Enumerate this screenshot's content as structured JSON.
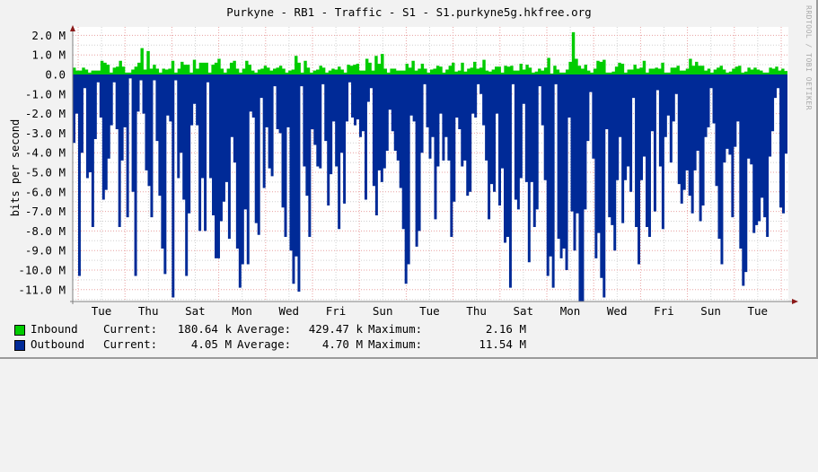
{
  "chart_data": {
    "type": "area",
    "title": "Purkyne - RB1 - Traffic - S1 - S1.purkyne5g.hkfree.org",
    "ylabel": "bits per second",
    "xlabel": "",
    "ylim": [
      -11.6,
      2.2
    ],
    "yticks": [
      "2.0 M",
      "1.0 M",
      "0.0",
      "-1.0 M",
      "-2.0 M",
      "-3.0 M",
      "-4.0 M",
      "-5.0 M",
      "-6.0 M",
      "-7.0 M",
      "-8.0 M",
      "-9.0 M",
      "-10.0 M",
      "-11.0 M"
    ],
    "ytick_values": [
      2,
      1,
      0,
      -1,
      -2,
      -3,
      -4,
      -5,
      -6,
      -7,
      -8,
      -9,
      -10,
      -11
    ],
    "xticks": [
      "Tue",
      "Thu",
      "Sat",
      "Mon",
      "Wed",
      "Fri",
      "Sun",
      "Tue",
      "Thu",
      "Sat",
      "Mon",
      "Wed",
      "Fri",
      "Sun",
      "Tue"
    ],
    "grid": true,
    "legend_position": "bottom",
    "series": [
      {
        "name": "Inbound",
        "color": "#00cc00",
        "unit": "M bits/s",
        "values": [
          0.35,
          0.2,
          0.2,
          0.35,
          0.25,
          0.1,
          0.2,
          0.2,
          0.2,
          0.7,
          0.6,
          0.5,
          0.1,
          0.35,
          0.4,
          0.7,
          0.4,
          0.1,
          0.1,
          0.25,
          0.4,
          0.6,
          1.35,
          0.25,
          1.2,
          0.3,
          0.5,
          0.3,
          0.1,
          0.3,
          0.25,
          0.3,
          0.7,
          0.1,
          0.3,
          0.65,
          0.5,
          0.5,
          0.1,
          0.75,
          0.3,
          0.6,
          0.6,
          0.6,
          0.1,
          0.5,
          0.6,
          0.8,
          0.3,
          0.1,
          0.3,
          0.6,
          0.7,
          0.3,
          0.1,
          0.3,
          0.7,
          0.5,
          0.2,
          0.1,
          0.25,
          0.3,
          0.45,
          0.35,
          0.2,
          0.3,
          0.35,
          0.45,
          0.3,
          0.1,
          0.2,
          0.25,
          0.95,
          0.6,
          0.1,
          0.7,
          0.35,
          0.1,
          0.2,
          0.25,
          0.45,
          0.35,
          0.1,
          0.2,
          0.3,
          0.25,
          0.4,
          0.25,
          0.1,
          0.5,
          0.45,
          0.5,
          0.55,
          0.2,
          0.2,
          0.8,
          0.6,
          0.2,
          0.95,
          0.55,
          1.05,
          0.3,
          0.1,
          0.3,
          0.3,
          0.2,
          0.2,
          0.2,
          0.55,
          0.35,
          0.7,
          0.2,
          0.3,
          0.55,
          0.3,
          0.1,
          0.25,
          0.3,
          0.45,
          0.4,
          0.1,
          0.25,
          0.45,
          0.6,
          0.15,
          0.2,
          0.6,
          0.15,
          0.3,
          0.35,
          0.65,
          0.3,
          0.35,
          0.75,
          0.2,
          0.15,
          0.25,
          0.4,
          0.4,
          0.1,
          0.45,
          0.4,
          0.45,
          0.2,
          0.2,
          0.55,
          0.25,
          0.5,
          0.35,
          0.1,
          0.15,
          0.3,
          0.2,
          0.35,
          0.85,
          0.05,
          0.45,
          0.25,
          0.1,
          0.1,
          0.25,
          0.65,
          2.16,
          0.8,
          0.45,
          0.3,
          0.5,
          0.2,
          0.1,
          0.3,
          0.7,
          0.65,
          0.75,
          0.1,
          0.1,
          0.15,
          0.4,
          0.6,
          0.55,
          0.1,
          0.25,
          0.25,
          0.5,
          0.3,
          0.35,
          0.7,
          0.1,
          0.3,
          0.3,
          0.35,
          0.3,
          0.6,
          0.1,
          0.1,
          0.35,
          0.35,
          0.45,
          0.2,
          0.2,
          0.3,
          0.8,
          0.45,
          0.65,
          0.45,
          0.45,
          0.2,
          0.3,
          0.1,
          0.25,
          0.35,
          0.45,
          0.25,
          0.1,
          0.15,
          0.3,
          0.4,
          0.45,
          0.1,
          0.15,
          0.35,
          0.25,
          0.35,
          0.25,
          0.2,
          0.1,
          0.1,
          0.35,
          0.3,
          0.4,
          0.2,
          0.3,
          0.18
        ]
      },
      {
        "name": "Outbound",
        "color": "#002a97",
        "unit": "M bits/s (plotted negative)",
        "values": [
          -3.5,
          -2.0,
          -10.3,
          -4.0,
          -0.7,
          -5.3,
          -5.0,
          -7.8,
          -3.3,
          -0.4,
          -2.2,
          -6.4,
          -5.9,
          -4.3,
          -2.6,
          -0.4,
          -2.8,
          -7.8,
          -4.4,
          -2.7,
          -7.3,
          -0.2,
          -6.0,
          -10.3,
          -1.9,
          -0.3,
          -2.0,
          -4.9,
          -5.7,
          -7.3,
          -0.3,
          -3.4,
          -6.2,
          -8.9,
          -10.2,
          -2.1,
          -2.4,
          -11.4,
          -0.3,
          -5.3,
          -4.0,
          -6.4,
          -10.3,
          -7.1,
          -2.6,
          -1.5,
          -2.6,
          -8.0,
          -5.3,
          -8.0,
          -0.4,
          -5.3,
          -7.2,
          -9.4,
          -9.4,
          -7.5,
          -6.5,
          -5.5,
          -8.4,
          -3.2,
          -4.5,
          -8.9,
          -10.9,
          -9.7,
          -6.9,
          -9.7,
          -1.9,
          -2.2,
          -7.6,
          -8.2,
          -1.2,
          -5.8,
          -2.7,
          -4.8,
          -5.2,
          -0.6,
          -2.8,
          -3.0,
          -6.8,
          -8.3,
          -2.7,
          -9.0,
          -10.7,
          -9.3,
          -11.1,
          -0.6,
          -4.7,
          -6.2,
          -8.3,
          -2.8,
          -3.6,
          -4.7,
          -4.8,
          -0.5,
          -3.4,
          -6.7,
          -5.1,
          -2.4,
          -4.7,
          -7.9,
          -4.0,
          -6.6,
          -2.4,
          -0.4,
          -2.2,
          -2.6,
          -2.3,
          -3.2,
          -2.9,
          -6.4,
          -1.4,
          -0.7,
          -5.7,
          -7.2,
          -4.9,
          -5.5,
          -4.8,
          -3.9,
          -1.8,
          -2.9,
          -3.9,
          -4.4,
          -5.8,
          -7.9,
          -10.7,
          -9.7,
          -2.1,
          -2.4,
          -8.8,
          -8.0,
          -4.0,
          -0.5,
          -2.7,
          -4.3,
          -3.2,
          -7.4,
          -4.7,
          -2.0,
          -4.4,
          -3.2,
          -4.4,
          -8.3,
          -6.5,
          -2.2,
          -2.8,
          -4.7,
          -4.4,
          -6.2,
          -6.0,
          -2.0,
          -2.2,
          -0.5,
          -1.0,
          -2.6,
          -4.4,
          -7.4,
          -5.6,
          -6.0,
          -2.0,
          -6.7,
          -4.8,
          -8.6,
          -8.3,
          -10.9,
          -0.5,
          -6.4,
          -6.9,
          -5.3,
          -1.5,
          -5.5,
          -9.6,
          -5.5,
          -7.8,
          -6.9,
          -0.6,
          -2.6,
          -5.4,
          -10.3,
          -9.3,
          -10.9,
          -0.5,
          -8.4,
          -9.4,
          -8.9,
          -10.0,
          -2.2,
          -7.0,
          -9.0,
          -7.1,
          -11.6,
          -11.6,
          -6.9,
          -3.4,
          -0.9,
          -4.3,
          -9.4,
          -8.1,
          -10.4,
          -11.4,
          -2.8,
          -7.3,
          -7.7,
          -9.0,
          -5.4,
          -3.2,
          -7.6,
          -5.4,
          -4.7,
          -6.0,
          -1.2,
          -7.8,
          -9.7,
          -5.4,
          -4.2,
          -7.8,
          -8.3,
          -2.9,
          -7.0,
          -0.8,
          -4.7,
          -7.9,
          -3.2,
          -2.1,
          -4.5,
          -2.4,
          -1.0,
          -5.6,
          -6.6,
          -5.9,
          -4.9,
          -6.2,
          -7.1,
          -4.9,
          -3.9,
          -7.5,
          -6.7,
          -3.2,
          -2.7,
          -0.7,
          -2.5,
          -5.7,
          -8.4,
          -9.7,
          -4.5,
          -3.8,
          -4.1,
          -7.3,
          -3.7,
          -2.4,
          -8.9,
          -10.8,
          -10.1,
          -4.3,
          -4.6,
          -8.1,
          -7.7,
          -7.5,
          -6.3,
          -7.3,
          -8.3,
          -4.2,
          -2.9,
          -1.2,
          -0.7,
          -6.8,
          -7.1,
          -4.05
        ]
      }
    ]
  },
  "legend": {
    "items": [
      {
        "label": "Inbound",
        "color": "#00cc00",
        "current_label": "Current:",
        "current": "180.64 k",
        "average_label": "Average:",
        "average": "429.47 k",
        "maximum_label": "Maximum:",
        "maximum": "2.16 M"
      },
      {
        "label": "Outbound",
        "color": "#002a97",
        "current_label": "Current:",
        "current": "4.05 M",
        "average_label": "Average:",
        "average": "4.70 M",
        "maximum_label": "Maximum:",
        "maximum": "11.54 M"
      }
    ]
  },
  "watermark": "RRDTOOL / TOBI OETIKER",
  "colors": {
    "background": "#f2f2f2",
    "plot_bg": "#ffffff",
    "major_grid": "#e8a0a0",
    "minor_grid": "#d0d0d0",
    "axis": "#808080",
    "arrow": "#8b1a1a"
  }
}
